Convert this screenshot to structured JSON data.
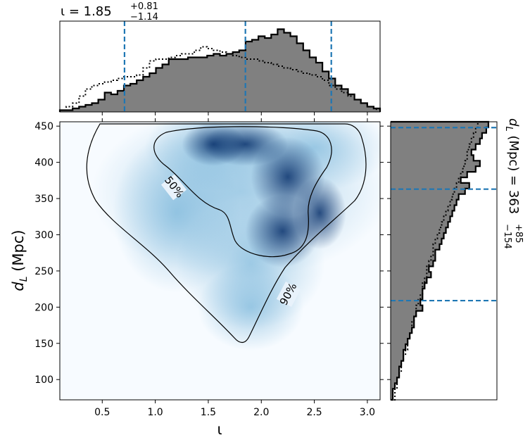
{
  "chart_data": {
    "type": "corner",
    "x_param": {
      "label": "ι",
      "ticks": [
        0.5,
        1.0,
        1.5,
        2.0,
        2.5,
        3.0
      ],
      "tick_labels": [
        "0.5",
        "1.0",
        "1.5",
        "2.0",
        "2.5",
        "3.0"
      ],
      "xlim": [
        0.1,
        3.12
      ],
      "median": 1.85,
      "plus": 0.81,
      "minus": 1.14,
      "annotation": {
        "prefix": "ι = 1.85",
        "sup": "+0.81",
        "sub": "−1.14"
      }
    },
    "y_param": {
      "label": "d",
      "label_sub": "L",
      "label_unit": " (Mpc)",
      "ticks": [
        100,
        150,
        200,
        250,
        300,
        350,
        400,
        450
      ],
      "tick_labels": [
        "100",
        "150",
        "200",
        "250",
        "300",
        "350",
        "400",
        "450"
      ],
      "ylim": [
        72,
        456
      ],
      "median": 363,
      "plus": 85,
      "minus": 154,
      "annotation": {
        "prefix": "d",
        "sub_l": "L",
        "mid": " (Mpc) = 363",
        "sup": "+85",
        "sub": "−154"
      }
    },
    "contours": [
      {
        "level": "50%",
        "label": "50%"
      },
      {
        "level": "90%",
        "label": "90%"
      }
    ],
    "x_hist_solid": [
      0.02,
      0.02,
      0.04,
      0.06,
      0.08,
      0.1,
      0.14,
      0.22,
      0.2,
      0.24,
      0.3,
      0.32,
      0.36,
      0.4,
      0.44,
      0.5,
      0.54,
      0.6,
      0.6,
      0.6,
      0.62,
      0.62,
      0.62,
      0.64,
      0.66,
      0.64,
      0.66,
      0.68,
      0.7,
      0.8,
      0.82,
      0.86,
      0.84,
      0.88,
      0.94,
      0.9,
      0.86,
      0.78,
      0.7,
      0.62,
      0.56,
      0.46,
      0.38,
      0.3,
      0.26,
      0.2,
      0.14,
      0.1,
      0.06,
      0.04
    ],
    "x_hist_dotted": [
      0.02,
      0.06,
      0.1,
      0.18,
      0.26,
      0.3,
      0.32,
      0.34,
      0.36,
      0.38,
      0.4,
      0.4,
      0.42,
      0.5,
      0.58,
      0.6,
      0.6,
      0.62,
      0.64,
      0.66,
      0.66,
      0.7,
      0.74,
      0.72,
      0.7,
      0.68,
      0.66,
      0.64,
      0.62,
      0.6,
      0.6,
      0.58,
      0.56,
      0.54,
      0.52,
      0.5,
      0.48,
      0.46,
      0.44,
      0.42,
      0.4,
      0.36,
      0.3,
      0.26,
      0.22,
      0.18,
      0.14,
      0.1,
      0.06,
      0.03
    ],
    "y_hist_solid": [
      0.02,
      0.02,
      0.04,
      0.06,
      0.08,
      0.08,
      0.1,
      0.12,
      0.12,
      0.14,
      0.16,
      0.18,
      0.2,
      0.22,
      0.22,
      0.24,
      0.3,
      0.28,
      0.3,
      0.3,
      0.32,
      0.34,
      0.38,
      0.36,
      0.4,
      0.42,
      0.42,
      0.46,
      0.48,
      0.5,
      0.52,
      0.54,
      0.56,
      0.58,
      0.6,
      0.62,
      0.64,
      0.7,
      0.74,
      0.66,
      0.72,
      0.8,
      0.84,
      0.78,
      0.76,
      0.8,
      0.84,
      0.86,
      0.9,
      0.92
    ],
    "y_hist_dotted": [
      0.04,
      0.04,
      0.06,
      0.06,
      0.08,
      0.1,
      0.1,
      0.12,
      0.14,
      0.16,
      0.16,
      0.18,
      0.2,
      0.2,
      0.22,
      0.24,
      0.24,
      0.26,
      0.28,
      0.3,
      0.3,
      0.32,
      0.34,
      0.34,
      0.36,
      0.38,
      0.4,
      0.4,
      0.42,
      0.44,
      0.46,
      0.48,
      0.5,
      0.52,
      0.54,
      0.56,
      0.58,
      0.6,
      0.62,
      0.64,
      0.66,
      0.68,
      0.7,
      0.72,
      0.72,
      0.74,
      0.76,
      0.78,
      0.8,
      0.82
    ],
    "colors": {
      "hist_fill": "#808080",
      "hist_edge": "#000000",
      "quantile_line": "#1f77b4",
      "density_low": "#f7fbff",
      "density_high": "#08306b"
    }
  }
}
